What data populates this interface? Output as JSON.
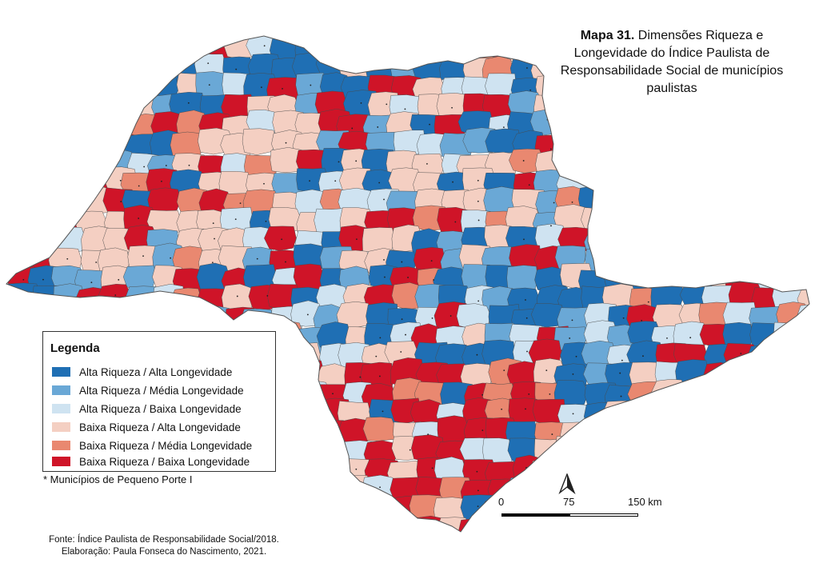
{
  "title": {
    "lead": "Mapa 31.",
    "rest": " Dimensões Riqueza e Longevidade do Índice Paulista de Responsabilidade Social de municípios paulistas"
  },
  "legend": {
    "heading": "Legenda",
    "items": [
      {
        "label": "Alta Riqueza / Alta Longevidade",
        "color": "#1f6fb4"
      },
      {
        "label": "Alta Riqueza / Média Longevidade",
        "color": "#6aa8d6"
      },
      {
        "label": "Alta Riqueza / Baixa Longevidade",
        "color": "#cfe3f1"
      },
      {
        "label": "Baixa Riqueza / Alta Longevidade",
        "color": "#f4cfc2"
      },
      {
        "label": "Baixa Riqueza / Média Longevidade",
        "color": "#e98870"
      },
      {
        "label": "Baixa Riqueza / Baixa Longevidade",
        "color": "#cf1428"
      }
    ]
  },
  "note": "* Municípios de Pequeno Porte I",
  "scale": {
    "labels": [
      "0",
      "75",
      "150 km"
    ]
  },
  "footer": {
    "source": "Fonte: Índice Paulista de Responsabilidade Social/2018.",
    "author": "Elaboração: Paula Fonseca do Nascimento, 2021."
  }
}
